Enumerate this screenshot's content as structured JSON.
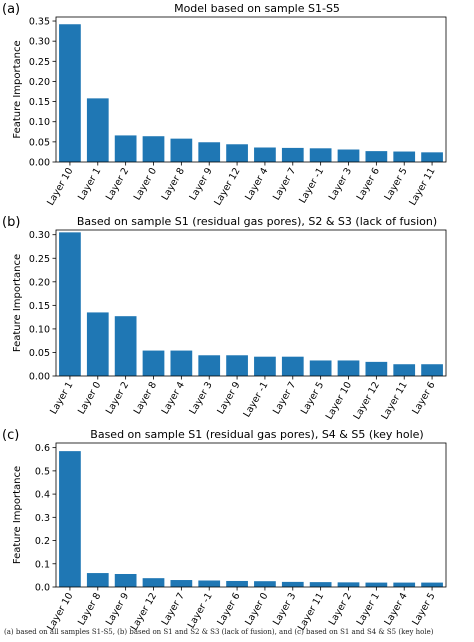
{
  "figure": {
    "caption": "(a) based on all samples S1-S5, (b) based on S1 and S2 & S3 (lack of fusion), and (c) based on S1 and S4 & S5 (key hole)"
  },
  "chart_data": [
    {
      "panel": "(a)",
      "type": "bar",
      "title": "Model based on sample S1-S5",
      "xlabel": "",
      "ylabel": "Feature Importance",
      "ylim": [
        0,
        0.36
      ],
      "yticks": [
        0.0,
        0.05,
        0.1,
        0.15,
        0.2,
        0.25,
        0.3,
        0.35
      ],
      "ytick_labels": [
        "0.00",
        "0.05",
        "0.10",
        "0.15",
        "0.20",
        "0.25",
        "0.30",
        "0.35"
      ],
      "categories": [
        "Layer 10",
        "Layer 1",
        "Layer 2",
        "Layer 0",
        "Layer 8",
        "Layer 9",
        "Layer 12",
        "Layer 4",
        "Layer 7",
        "Layer -1",
        "Layer 3",
        "Layer 6",
        "Layer 5",
        "Layer 11"
      ],
      "values": [
        0.342,
        0.158,
        0.066,
        0.064,
        0.058,
        0.049,
        0.044,
        0.036,
        0.035,
        0.034,
        0.031,
        0.027,
        0.026,
        0.024
      ],
      "bar_color": "#1f77b4",
      "grid": false
    },
    {
      "panel": "(b)",
      "type": "bar",
      "title": "Based on sample S1 (residual gas pores), S2 & S3 (lack of fusion)",
      "xlabel": "",
      "ylabel": "Feature Importance",
      "ylim": [
        0,
        0.31
      ],
      "yticks": [
        0.0,
        0.05,
        0.1,
        0.15,
        0.2,
        0.25,
        0.3
      ],
      "ytick_labels": [
        "0.00",
        "0.05",
        "0.10",
        "0.15",
        "0.20",
        "0.25",
        "0.30"
      ],
      "categories": [
        "Layer 1",
        "Layer 0",
        "Layer 2",
        "Layer 8",
        "Layer 4",
        "Layer 3",
        "Layer 9",
        "Layer -1",
        "Layer 7",
        "Layer 5",
        "Layer 10",
        "Layer 12",
        "Layer 11",
        "Layer 6"
      ],
      "values": [
        0.305,
        0.135,
        0.127,
        0.054,
        0.054,
        0.044,
        0.044,
        0.041,
        0.041,
        0.033,
        0.033,
        0.03,
        0.025,
        0.025
      ],
      "bar_color": "#1f77b4",
      "grid": false
    },
    {
      "panel": "(c)",
      "type": "bar",
      "title": "Based on sample S1 (residual gas pores), S4 & S5 (key hole)",
      "xlabel": "",
      "ylabel": "Feature Importance",
      "ylim": [
        0,
        0.62
      ],
      "yticks": [
        0.0,
        0.1,
        0.2,
        0.3,
        0.4,
        0.5,
        0.6
      ],
      "ytick_labels": [
        "0.0",
        "0.1",
        "0.2",
        "0.3",
        "0.4",
        "0.5",
        "0.6"
      ],
      "categories": [
        "Layer 10",
        "Layer 8",
        "Layer 9",
        "Layer 12",
        "Layer 7",
        "Layer -1",
        "Layer 6",
        "Layer 0",
        "Layer 3",
        "Layer 11",
        "Layer 2",
        "Layer 1",
        "Layer 4",
        "Layer 5"
      ],
      "values": [
        0.585,
        0.06,
        0.056,
        0.038,
        0.03,
        0.028,
        0.026,
        0.025,
        0.022,
        0.021,
        0.02,
        0.019,
        0.019,
        0.019
      ],
      "bar_color": "#1f77b4",
      "grid": false
    }
  ]
}
